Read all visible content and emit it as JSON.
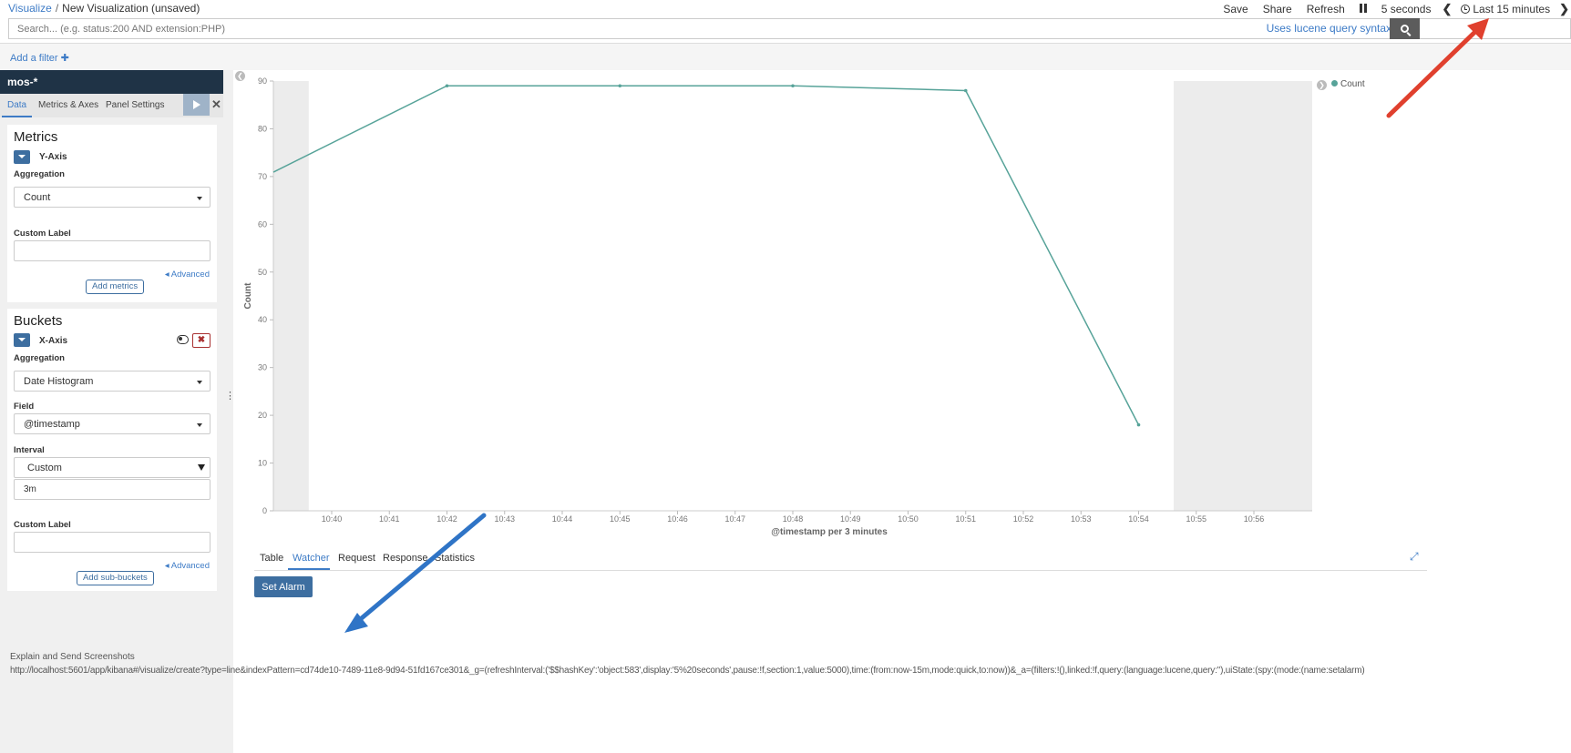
{
  "topbar": {
    "breadcrumb_root": "Visualize",
    "breadcrumb_sep": "/",
    "breadcrumb_current": "New Visualization (unsaved)",
    "save": "Save",
    "share": "Share",
    "refresh": "Refresh",
    "interval": "5 seconds",
    "time_range": "Last 15 minutes"
  },
  "search": {
    "placeholder": "Search... (e.g. status:200 AND extension:PHP)",
    "syntax_link": "Uses lucene query syntax"
  },
  "filter": {
    "add_label": "Add a filter ✚"
  },
  "sidebar": {
    "index_pattern": "mos-*",
    "tabs": [
      "Data",
      "Metrics & Axes",
      "Panel Settings"
    ],
    "metrics": {
      "title": "Metrics",
      "axis": "Y-Axis",
      "aggregation_label": "Aggregation",
      "aggregation_value": "Count",
      "custom_label": "Custom Label",
      "custom_value": "",
      "advanced": "Advanced",
      "add_button": "Add metrics"
    },
    "buckets": {
      "title": "Buckets",
      "axis": "X-Axis",
      "aggregation_label": "Aggregation",
      "aggregation_value": "Date Histogram",
      "field_label": "Field",
      "field_value": "@timestamp",
      "interval_label": "Interval",
      "interval_value": "Custom",
      "interval_custom": "3m",
      "custom_label": "Custom Label",
      "custom_value": "",
      "advanced": "Advanced",
      "add_button": "Add sub-buckets"
    }
  },
  "chart_data": {
    "type": "line",
    "ylabel": "Count",
    "xlabel": "@timestamp per 3 minutes",
    "ylim": [
      0,
      90
    ],
    "yticks": [
      0,
      10,
      20,
      30,
      40,
      50,
      60,
      70,
      80,
      90
    ],
    "xticks": [
      "10:40",
      "10:41",
      "10:42",
      "10:43",
      "10:44",
      "10:45",
      "10:46",
      "10:47",
      "10:48",
      "10:49",
      "10:50",
      "10:51",
      "10:52",
      "10:53",
      "10:54",
      "10:55",
      "10:56"
    ],
    "series": [
      {
        "name": "Count",
        "color": "#57a399",
        "x": [
          "10:39",
          "10:42",
          "10:45",
          "10:48",
          "10:51",
          "10:54"
        ],
        "values": [
          71,
          89,
          89,
          89,
          88,
          18
        ]
      }
    ],
    "legend": {
      "position": "top-right",
      "entries": [
        "Count"
      ]
    }
  },
  "bottom_tabs": [
    "Table",
    "Watcher",
    "Request",
    "Response",
    "Statistics"
  ],
  "set_alarm": "Set Alarm",
  "footer": {
    "title": "Explain and Send Screenshots",
    "url": "http://localhost:5601/app/kibana#/visualize/create?type=line&indexPattern=cd74de10-7489-11e8-9d94-51fd167ce301&_g=(refreshInterval:('$$hashKey':'object:583',display:'5%20seconds',pause:!f,section:1,value:5000),time:(from:now-15m,mode:quick,to:now))&_a=(filters:!(),linked:!f,query:(language:lucene,query:''),uiState:(spy:(mode:(name:setalarm)"
  }
}
